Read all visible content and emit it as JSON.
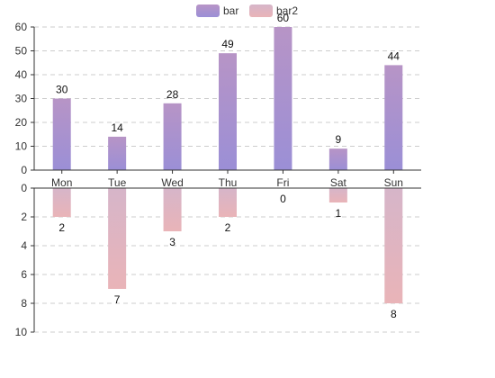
{
  "chart_data": {
    "type": "bar",
    "legend": {
      "position": "top-center",
      "items": [
        {
          "name": "bar",
          "color_top": "#b794c6",
          "color_bottom": "#9b8fd6"
        },
        {
          "name": "bar2",
          "color_top": "#d6b5c9",
          "color_bottom": "#e9b4b8"
        }
      ]
    },
    "categories": [
      "Mon",
      "Tue",
      "Wed",
      "Thu",
      "Fri",
      "Sat",
      "Sun"
    ],
    "series": [
      {
        "name": "bar",
        "values": [
          30,
          14,
          28,
          49,
          60,
          9,
          44
        ]
      },
      {
        "name": "bar2",
        "values": [
          2,
          7,
          3,
          2,
          0,
          1,
          8
        ]
      }
    ],
    "top_axis": {
      "ylim": [
        0,
        60
      ],
      "ticks": [
        "0",
        "10",
        "20",
        "30",
        "40",
        "50",
        "60"
      ]
    },
    "bottom_axis": {
      "ylim": [
        0,
        10
      ],
      "ticks": [
        "0",
        "2",
        "4",
        "6",
        "8",
        "10"
      ],
      "inverted": true
    },
    "grid": true,
    "colors": {
      "axis": "#333333",
      "grid": "#cccccc"
    }
  }
}
